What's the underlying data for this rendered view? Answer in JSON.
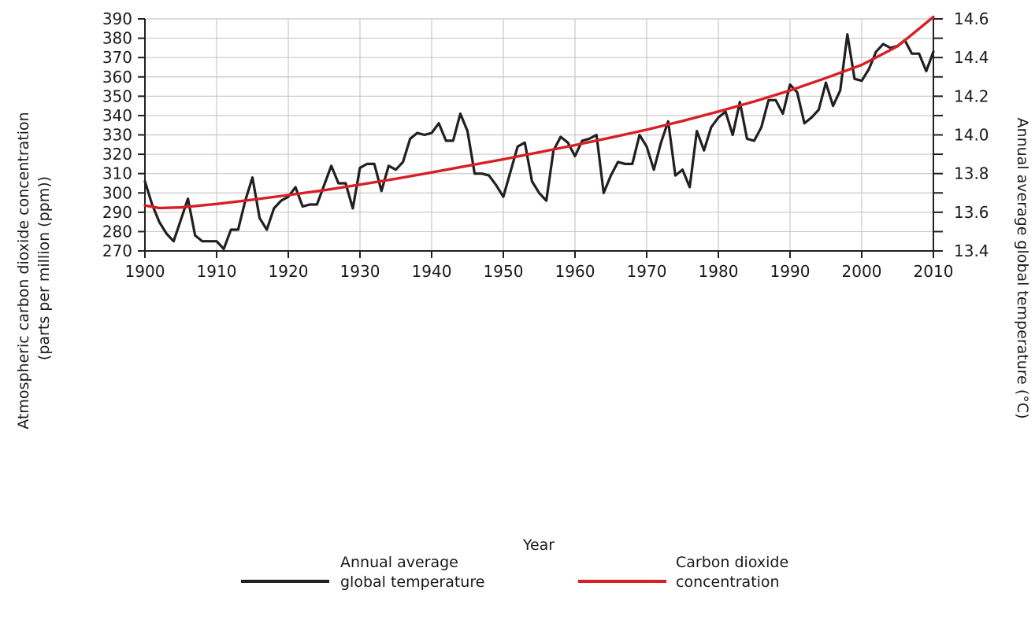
{
  "chart_data": {
    "type": "line",
    "xlabel": "Year",
    "ylabel_left": [
      "Atmospheric carbon dioxide concentration",
      "(parts per million (ppm))"
    ],
    "ylabel_right": "Annual average global temperature (°C)",
    "xlim": [
      1900,
      2010
    ],
    "ylim_left": [
      270,
      390
    ],
    "ylim_right": [
      13.4,
      14.6
    ],
    "x_ticks": [
      1900,
      1910,
      1920,
      1930,
      1940,
      1950,
      1960,
      1970,
      1980,
      1990,
      2000,
      2010
    ],
    "x_tick_labels": [
      "1900",
      "1910",
      "1920",
      "1930",
      "1940",
      "1950",
      "1960",
      "1970",
      "1980",
      "1990",
      "2000",
      "2010"
    ],
    "y_left_ticks": [
      270,
      280,
      290,
      300,
      310,
      320,
      330,
      340,
      350,
      360,
      370,
      380,
      390
    ],
    "y_left_tick_labels": [
      "270",
      "280",
      "290",
      "300",
      "310",
      "320",
      "330",
      "340",
      "350",
      "360",
      "370",
      "380",
      "390"
    ],
    "y_right_ticks": [
      13.4,
      13.6,
      13.8,
      14.0,
      14.2,
      14.4,
      14.6
    ],
    "y_right_tick_labels": [
      "13.4",
      "13.6",
      "13.8",
      "14.0",
      "14.2",
      "14.4",
      "14.6"
    ],
    "grid": true,
    "legend_position": "bottom",
    "series": [
      {
        "name": "Annual average global temperature",
        "axis": "right",
        "color": "#231f20",
        "legend_lines": [
          "Annual average",
          "global temperature"
        ],
        "x": [
          1900,
          1901,
          1902,
          1903,
          1904,
          1905,
          1906,
          1907,
          1908,
          1909,
          1910,
          1911,
          1912,
          1913,
          1914,
          1915,
          1916,
          1917,
          1918,
          1919,
          1920,
          1921,
          1922,
          1923,
          1924,
          1925,
          1926,
          1927,
          1928,
          1929,
          1930,
          1931,
          1932,
          1933,
          1934,
          1935,
          1936,
          1937,
          1938,
          1939,
          1940,
          1941,
          1942,
          1943,
          1944,
          1945,
          1946,
          1947,
          1948,
          1949,
          1950,
          1951,
          1952,
          1953,
          1954,
          1955,
          1956,
          1957,
          1958,
          1959,
          1960,
          1961,
          1962,
          1963,
          1964,
          1965,
          1966,
          1967,
          1968,
          1969,
          1970,
          1971,
          1972,
          1973,
          1974,
          1975,
          1976,
          1977,
          1978,
          1979,
          1980,
          1981,
          1982,
          1983,
          1984,
          1985,
          1986,
          1987,
          1988,
          1989,
          1990,
          1991,
          1992,
          1993,
          1994,
          1995,
          1996,
          1997,
          1998,
          1999,
          2000,
          2001,
          2002,
          2003,
          2004,
          2005,
          2006,
          2007,
          2008,
          2009,
          2010
        ],
        "values": [
          13.76,
          13.64,
          13.55,
          13.49,
          13.45,
          13.56,
          13.67,
          13.48,
          13.45,
          13.45,
          13.45,
          13.41,
          13.51,
          13.51,
          13.66,
          13.78,
          13.57,
          13.51,
          13.62,
          13.66,
          13.68,
          13.73,
          13.63,
          13.64,
          13.64,
          13.74,
          13.84,
          13.75,
          13.75,
          13.62,
          13.83,
          13.85,
          13.85,
          13.71,
          13.84,
          13.82,
          13.86,
          13.98,
          14.01,
          14.0,
          14.01,
          14.06,
          13.97,
          13.97,
          14.11,
          14.02,
          13.8,
          13.8,
          13.79,
          13.74,
          13.68,
          13.81,
          13.94,
          13.96,
          13.76,
          13.7,
          13.66,
          13.92,
          13.99,
          13.96,
          13.89,
          13.97,
          13.98,
          14.0,
          13.7,
          13.79,
          13.86,
          13.85,
          13.85,
          14.0,
          13.94,
          13.82,
          13.96,
          14.07,
          13.79,
          13.82,
          13.73,
          14.02,
          13.92,
          14.04,
          14.09,
          14.12,
          14.0,
          14.17,
          13.98,
          13.97,
          14.04,
          14.18,
          14.18,
          14.11,
          14.26,
          14.22,
          14.06,
          14.09,
          14.13,
          14.27,
          14.15,
          14.23,
          14.52,
          14.29,
          14.28,
          14.34,
          14.43,
          14.47,
          14.45,
          14.46,
          14.49,
          14.42,
          14.42,
          14.33,
          14.43
        ]
      },
      {
        "name": "Carbon dioxide concentration",
        "axis": "left",
        "color": "#d71f26",
        "legend_lines": [
          "Carbon dioxide",
          "concentration"
        ],
        "x": [
          1900,
          1902,
          1905,
          1910,
          1915,
          1920,
          1925,
          1930,
          1935,
          1940,
          1945,
          1950,
          1955,
          1960,
          1965,
          1970,
          1975,
          1980,
          1985,
          1990,
          1995,
          2000,
          2005,
          2010
        ],
        "values": [
          293.5,
          292.2,
          292.5,
          294.3,
          296.5,
          298.9,
          301.4,
          304.3,
          307.3,
          310.6,
          314.0,
          317.4,
          321.0,
          324.7,
          328.6,
          332.7,
          337.2,
          342.1,
          347.3,
          353.0,
          359.4,
          366.2,
          375.8,
          391.0
        ]
      }
    ]
  }
}
